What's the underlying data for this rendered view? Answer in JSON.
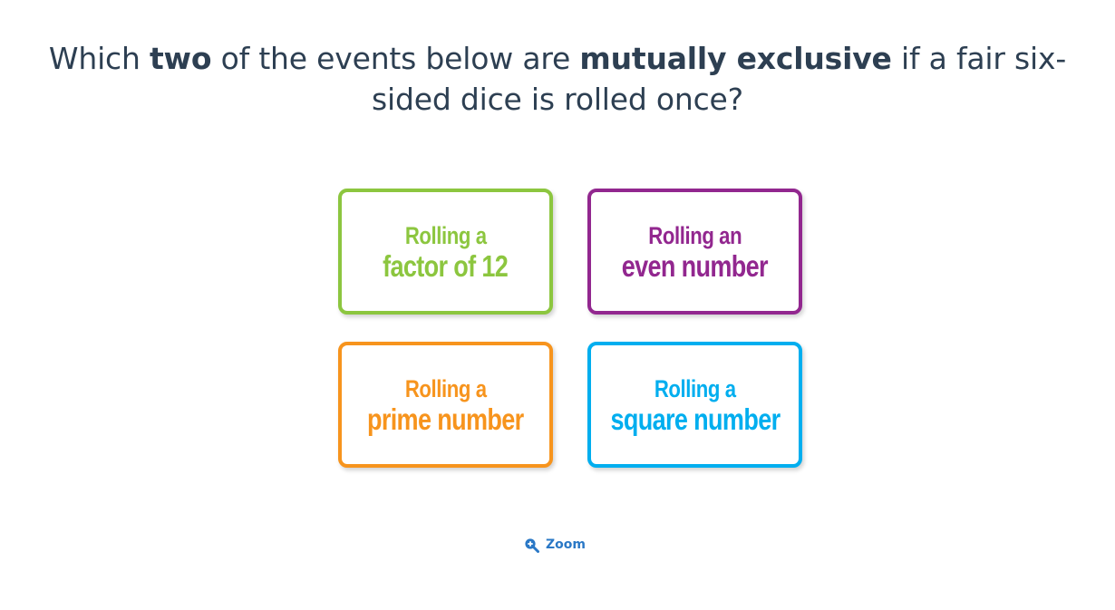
{
  "question": {
    "part1": "Which ",
    "bold1": "two",
    "part2": " of the events below are ",
    "bold2": "mutually exclusive",
    "part3": " if a fair six-sided dice is rolled once?"
  },
  "cards": [
    {
      "line1": "Rolling a",
      "line2": "factor of 12",
      "color": "#8cc63f"
    },
    {
      "line1": "Rolling an",
      "line2": "even number",
      "color": "#92278f"
    },
    {
      "line1": "Rolling a",
      "line2": "prime number",
      "color": "#f7941d"
    },
    {
      "line1": "Rolling a",
      "line2": "square number",
      "color": "#00aeef"
    }
  ],
  "zoom": {
    "label": "Zoom",
    "icon": "zoom-in-icon",
    "color": "#2a78c6"
  }
}
